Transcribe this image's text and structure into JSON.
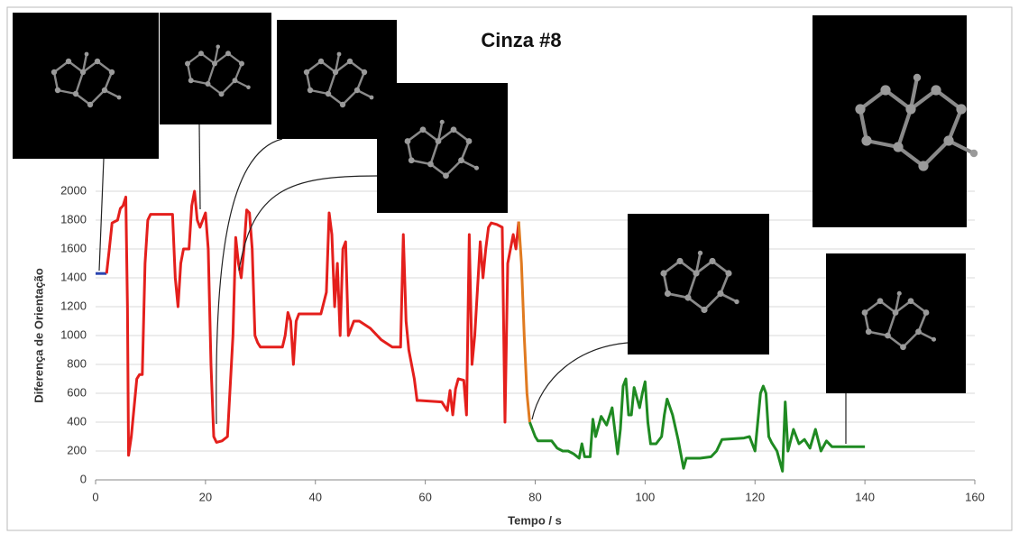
{
  "chart_data": {
    "type": "line",
    "title": "Cinza #8",
    "x_label": "Tempo / s",
    "y_label": "Diferença de Orientação",
    "xlim": [
      0,
      160
    ],
    "xticks": [
      0,
      20,
      40,
      60,
      80,
      100,
      120,
      140,
      160
    ],
    "ylim": [
      0,
      2000
    ],
    "yticks": [
      0,
      200,
      400,
      600,
      800,
      1000,
      1200,
      1400,
      1600,
      1800,
      2000
    ],
    "grid": true,
    "series": [
      {
        "color": "#2a45b0",
        "x": [
          0,
          2
        ],
        "values": [
          1430,
          1430
        ]
      },
      {
        "color": "#e41f1c",
        "x": [
          2,
          2.5,
          3,
          4,
          4.5,
          5,
          5.5,
          5.8,
          6,
          6.5,
          7,
          7.5,
          8,
          8.5,
          9,
          9.5,
          10,
          14,
          14.5,
          15,
          15.5,
          16,
          17,
          17.5,
          18,
          18.5,
          19,
          19.5,
          20,
          20.5,
          21,
          21.5,
          22,
          23,
          24,
          25,
          25.5,
          26,
          26.5,
          27,
          27.5,
          28,
          28.5,
          29,
          29.5,
          30,
          34,
          34.5,
          35,
          35.5,
          36,
          36.5,
          37,
          41,
          42,
          42.5,
          43,
          43.5,
          44,
          44.5,
          45,
          45.5,
          46,
          47,
          48,
          50,
          52,
          54,
          55.5,
          56,
          56.5,
          57,
          58,
          58.5,
          59,
          63,
          64,
          64.5,
          65,
          65.5,
          66,
          67,
          67.5,
          68,
          68.5,
          69,
          70,
          70.5,
          71,
          71.5,
          72,
          73,
          74,
          74.5,
          75,
          76,
          76.5,
          77
        ],
        "values": [
          1430,
          1600,
          1780,
          1800,
          1880,
          1900,
          1960,
          1200,
          170,
          300,
          500,
          700,
          730,
          730,
          1500,
          1800,
          1840,
          1840,
          1400,
          1200,
          1500,
          1600,
          1600,
          1900,
          2000,
          1800,
          1750,
          1800,
          1850,
          1600,
          800,
          300,
          260,
          270,
          300,
          1000,
          1680,
          1500,
          1400,
          1600,
          1870,
          1850,
          1600,
          1000,
          950,
          920,
          920,
          1000,
          1160,
          1100,
          800,
          1100,
          1150,
          1150,
          1300,
          1850,
          1700,
          1200,
          1500,
          1000,
          1600,
          1650,
          1000,
          1100,
          1100,
          1050,
          970,
          920,
          920,
          1700,
          1100,
          900,
          700,
          550,
          550,
          540,
          480,
          620,
          450,
          630,
          700,
          690,
          450,
          1700,
          800,
          1000,
          1650,
          1400,
          1600,
          1750,
          1780,
          1770,
          1750,
          400,
          1500,
          1700,
          1600,
          1790
        ]
      },
      {
        "color": "#e07a20",
        "x": [
          77,
          77.5,
          78,
          78.5,
          79
        ],
        "values": [
          1790,
          1500,
          1000,
          600,
          400
        ]
      },
      {
        "color": "#1f8a22",
        "x": [
          79,
          80,
          80.5,
          83,
          84,
          85,
          86,
          87,
          88,
          88.5,
          89,
          90,
          90.5,
          91,
          92,
          93,
          94,
          95,
          95.5,
          96,
          96.5,
          97,
          97.5,
          98,
          99,
          99.5,
          100,
          100.5,
          101,
          102,
          103,
          103.5,
          104,
          105,
          106,
          107,
          107.5,
          110,
          112,
          113,
          114,
          118,
          119,
          120,
          121,
          121.5,
          122,
          122.5,
          123,
          124,
          125,
          125.5,
          126,
          127,
          128,
          129,
          130,
          131,
          132,
          133,
          134,
          140
        ],
        "values": [
          400,
          300,
          270,
          270,
          220,
          200,
          200,
          180,
          150,
          250,
          160,
          160,
          420,
          300,
          440,
          380,
          500,
          180,
          350,
          650,
          700,
          450,
          450,
          640,
          500,
          600,
          680,
          400,
          250,
          250,
          300,
          450,
          560,
          450,
          280,
          80,
          150,
          150,
          160,
          200,
          280,
          290,
          300,
          200,
          600,
          650,
          600,
          300,
          260,
          200,
          60,
          540,
          200,
          350,
          250,
          280,
          220,
          350,
          200,
          270,
          230,
          230
        ]
      }
    ]
  }
}
